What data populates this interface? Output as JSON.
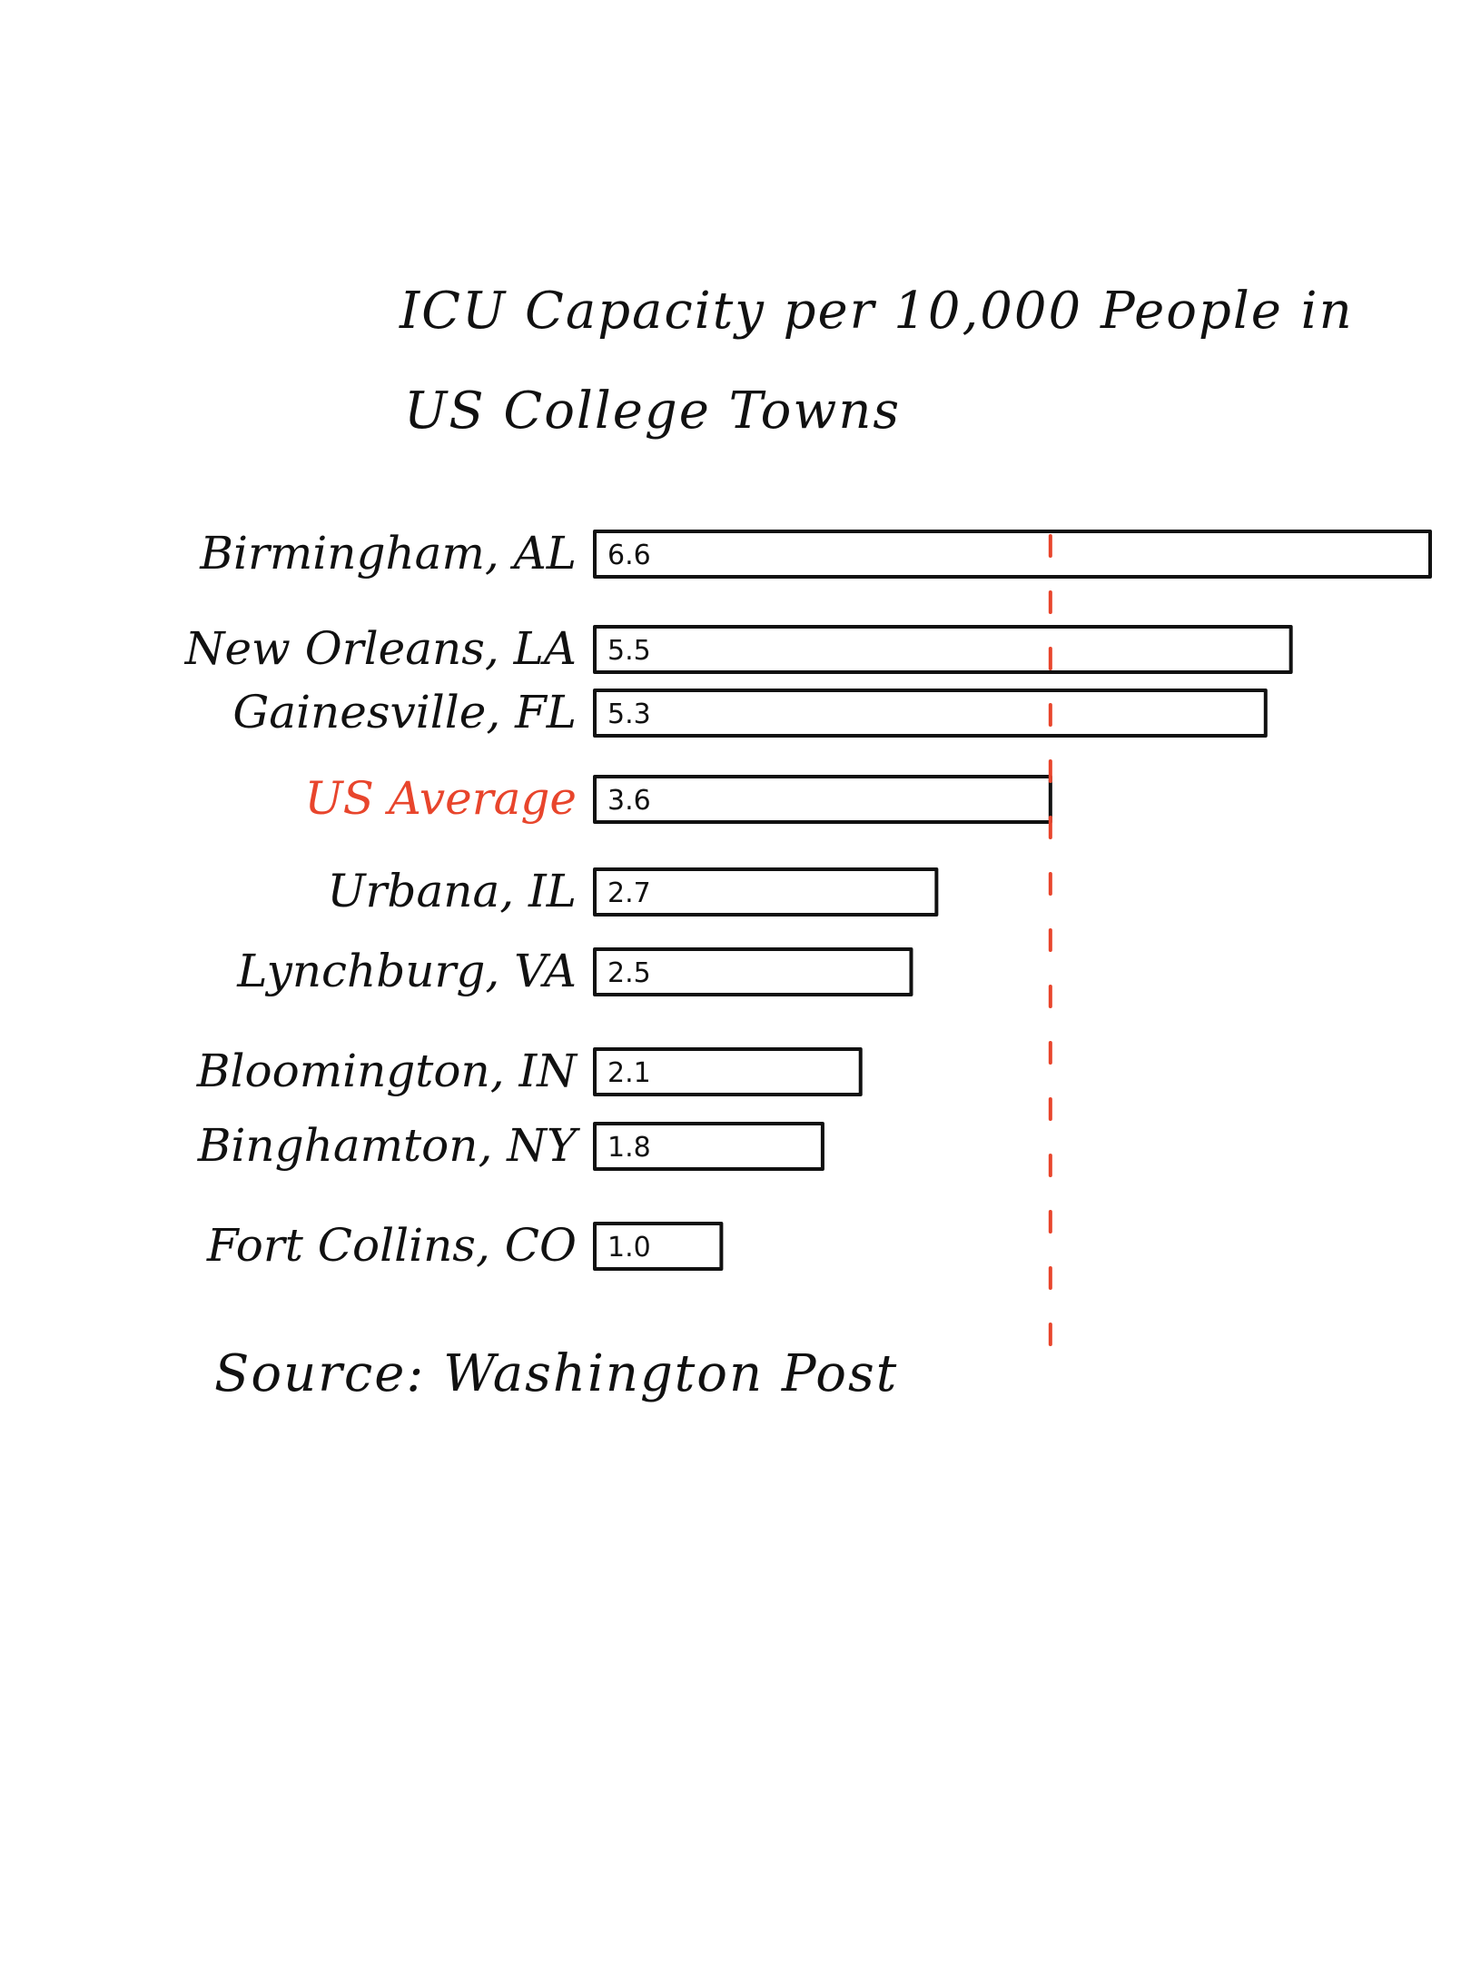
{
  "chart_data": {
    "type": "bar",
    "orientation": "horizontal",
    "title_lines": [
      "ICU Capacity per 10,000 People in",
      "US College Towns"
    ],
    "source": "Source: Washington Post",
    "categories": [
      "Birmingham, AL",
      "New Orleans, LA",
      "Gainesville, FL",
      "US Average",
      "Urbana, IL",
      "Lynchburg, VA",
      "Bloomington, IN",
      "Binghamton, NY",
      "Fort Collins, CO"
    ],
    "values": [
      6.6,
      5.5,
      5.3,
      3.6,
      2.7,
      2.5,
      2.1,
      1.8,
      1.0
    ],
    "value_labels": [
      "6.6",
      "5.5",
      "5.3",
      "3.6",
      "2.7",
      "2.5",
      "2.1",
      "1.8",
      "1.0"
    ],
    "highlight_category": "US Average",
    "reference_line": {
      "value": 3.6,
      "style": "dashed"
    },
    "colors": {
      "ink": "#111111",
      "highlight": "#e8452c",
      "reference": "#e8452c"
    }
  }
}
